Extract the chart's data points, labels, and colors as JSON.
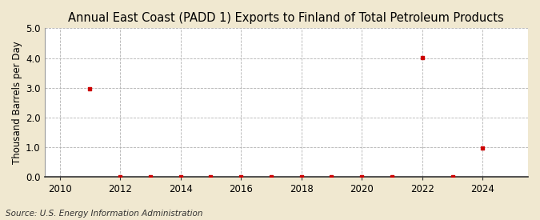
{
  "title": "Annual East Coast (PADD 1) Exports to Finland of Total Petroleum Products",
  "ylabel": "Thousand Barrels per Day",
  "source": "Source: U.S. Energy Information Administration",
  "background_color": "#f0e8d0",
  "plot_background_color": "#ffffff",
  "xlim": [
    2009.5,
    2025.5
  ],
  "ylim": [
    0.0,
    5.0
  ],
  "yticks": [
    0.0,
    1.0,
    2.0,
    3.0,
    4.0,
    5.0
  ],
  "xticks": [
    2010,
    2012,
    2014,
    2016,
    2018,
    2020,
    2022,
    2024
  ],
  "data_x": [
    2011,
    2012,
    2013,
    2014,
    2015,
    2016,
    2017,
    2018,
    2019,
    2020,
    2021,
    2022,
    2023,
    2024
  ],
  "data_y": [
    2.97,
    0.02,
    0.02,
    0.02,
    0.02,
    0.02,
    0.02,
    0.02,
    0.02,
    0.02,
    0.02,
    4.02,
    0.02,
    0.97
  ],
  "marker_color": "#cc0000",
  "marker_size": 3,
  "grid_color": "#aaaaaa",
  "title_fontsize": 10.5,
  "ylabel_fontsize": 8.5,
  "tick_fontsize": 8.5,
  "source_fontsize": 7.5
}
